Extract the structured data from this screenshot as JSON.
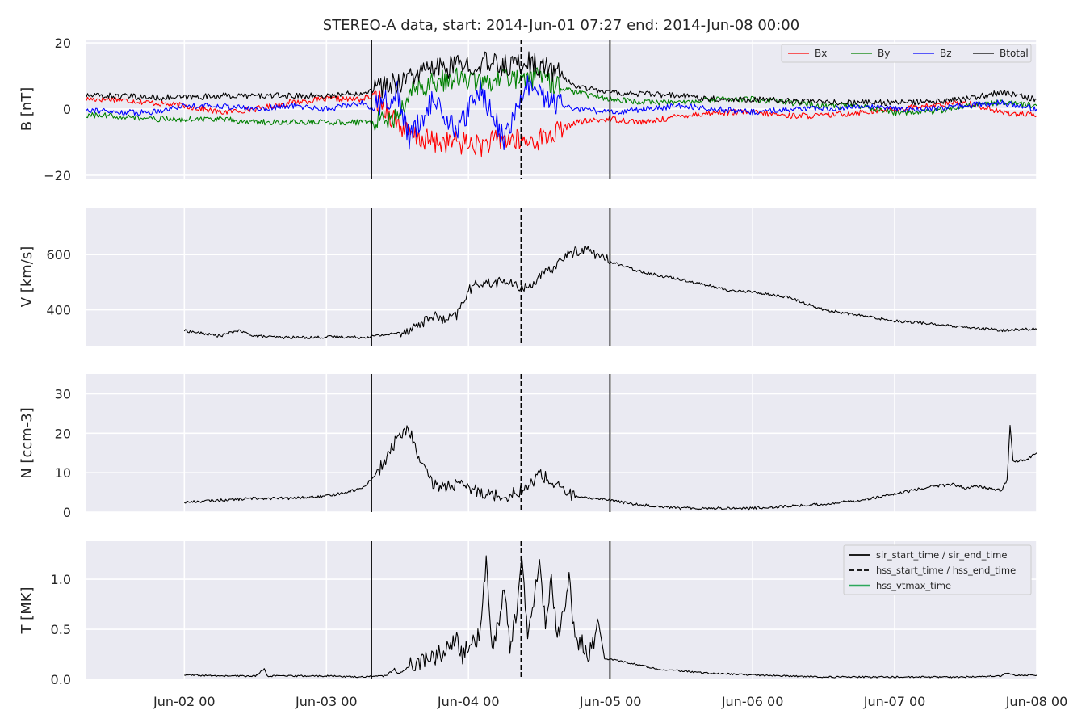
{
  "chart_data": [
    {
      "type": "line",
      "panel": "B",
      "title": "STEREO-A data, start: 2014-Jun-01 07:27  end: 2014-Jun-08 00:00",
      "ylabel": "B [nT]",
      "xlim_hours": [
        7.45,
        168
      ],
      "ylim": [
        -21,
        21
      ],
      "yticks": [
        20,
        0,
        -20
      ],
      "ytick_labels": [
        "20",
        "0",
        "−20"
      ],
      "grid": true,
      "legend_position": "top-right",
      "series": [
        {
          "name": "Bx",
          "color": "#ff0000",
          "x": [
            7.45,
            12,
            18,
            24,
            30,
            36,
            42,
            48,
            54,
            56,
            60,
            62,
            66,
            70,
            74,
            78,
            82,
            86,
            90,
            96,
            102,
            108,
            114,
            120,
            126,
            132,
            138,
            144,
            150,
            156,
            162,
            168
          ],
          "values": [
            3,
            3,
            2,
            1,
            -1,
            0,
            2,
            3,
            3,
            4,
            -4,
            -8,
            -10,
            -10,
            -11,
            -9,
            -10,
            -8,
            -4,
            -3,
            -4,
            -2,
            -1,
            -1,
            -2,
            -2,
            -1,
            0,
            1,
            2,
            -1,
            -2
          ]
        },
        {
          "name": "By",
          "color": "#008000",
          "x": [
            7.45,
            12,
            18,
            24,
            30,
            36,
            42,
            48,
            54,
            56,
            60,
            62,
            66,
            70,
            74,
            78,
            82,
            86,
            90,
            96,
            102,
            108,
            114,
            120,
            126,
            132,
            138,
            144,
            150,
            156,
            162,
            168
          ],
          "values": [
            -2,
            -2,
            -3,
            -3,
            -3,
            -4,
            -4,
            -4,
            -4,
            -4,
            -3,
            5,
            8,
            9,
            8,
            9,
            10,
            8,
            5,
            3,
            2,
            2,
            3,
            3,
            2,
            1,
            1,
            -1,
            -1,
            1,
            2,
            1
          ]
        },
        {
          "name": "Bz",
          "color": "#0000ff",
          "x": [
            7.45,
            12,
            18,
            24,
            30,
            36,
            42,
            48,
            54,
            56,
            60,
            62,
            66,
            70,
            74,
            78,
            82,
            86,
            90,
            96,
            102,
            108,
            114,
            120,
            126,
            132,
            138,
            144,
            150,
            156,
            162,
            168
          ],
          "values": [
            0,
            -1,
            -1,
            1,
            1,
            0,
            1,
            0,
            2,
            0,
            5,
            -9,
            3,
            -7,
            6,
            -9,
            7,
            2,
            0,
            -1,
            0,
            1,
            0,
            -1,
            0,
            0,
            1,
            0,
            0,
            1,
            2,
            0
          ]
        },
        {
          "name": "Btotal",
          "color": "#000000",
          "x": [
            7.45,
            12,
            18,
            24,
            30,
            36,
            42,
            48,
            54,
            56,
            60,
            62,
            66,
            70,
            74,
            78,
            82,
            86,
            90,
            96,
            102,
            108,
            114,
            120,
            126,
            132,
            138,
            144,
            150,
            156,
            162,
            168
          ],
          "values": [
            4,
            4,
            3.5,
            3.5,
            4,
            4,
            4,
            4,
            5,
            6,
            8,
            10,
            12,
            13,
            14,
            13,
            14,
            12,
            7,
            5,
            4.5,
            4,
            3,
            3,
            2.5,
            2,
            2,
            2,
            2,
            3,
            5,
            3
          ]
        }
      ]
    },
    {
      "type": "line",
      "panel": "V",
      "ylabel": "V [km/s]",
      "xlim_hours": [
        7.45,
        168
      ],
      "ylim": [
        270,
        770
      ],
      "yticks": [
        600,
        400
      ],
      "ytick_labels": [
        "600",
        "400"
      ],
      "grid": true,
      "series": [
        {
          "color": "#000000",
          "x": [
            24,
            26,
            30,
            33,
            36,
            40,
            46,
            50,
            54,
            56,
            60,
            62,
            64,
            66,
            68,
            70,
            72,
            74,
            76,
            78,
            80,
            82,
            84,
            86,
            88,
            90,
            92,
            94,
            96,
            100,
            104,
            108,
            112,
            116,
            120,
            126,
            132,
            138,
            144,
            150,
            156,
            160,
            162,
            166,
            168
          ],
          "values": [
            325,
            318,
            305,
            325,
            305,
            300,
            300,
            303,
            300,
            305,
            315,
            330,
            350,
            380,
            360,
            380,
            470,
            500,
            495,
            505,
            485,
            480,
            520,
            545,
            590,
            610,
            620,
            595,
            575,
            545,
            525,
            510,
            490,
            470,
            465,
            445,
            400,
            380,
            360,
            350,
            335,
            330,
            325,
            330,
            330
          ]
        }
      ]
    },
    {
      "type": "line",
      "panel": "N",
      "ylabel": "N [ccm-3]",
      "xlim_hours": [
        7.45,
        168
      ],
      "ylim": [
        0,
        35
      ],
      "yticks": [
        30,
        20,
        10,
        0
      ],
      "ytick_labels": [
        "30",
        "20",
        "10",
        "0"
      ],
      "grid": true,
      "series": [
        {
          "color": "#000000",
          "x": [
            24,
            30,
            36,
            42,
            48,
            54,
            56,
            58,
            60,
            62,
            64,
            66,
            68,
            70,
            72,
            76,
            78,
            80,
            82,
            84,
            86,
            88,
            90,
            92,
            94,
            96,
            100,
            104,
            108,
            114,
            120,
            126,
            132,
            138,
            144,
            150,
            154,
            156,
            158,
            162,
            163,
            163.5,
            164,
            166,
            168
          ],
          "values": [
            2.5,
            3,
            3.5,
            3.5,
            4,
            6,
            9,
            13,
            19,
            21,
            12,
            7,
            6.5,
            7,
            6,
            4.5,
            4,
            5,
            6,
            10,
            7.5,
            5.5,
            4,
            3.5,
            3.5,
            3,
            2,
            1.5,
            1,
            1,
            1,
            1.5,
            2,
            3,
            4.5,
            6.5,
            7,
            6,
            6.5,
            5.5,
            8,
            22,
            13,
            13,
            15
          ]
        }
      ]
    },
    {
      "type": "line",
      "panel": "T",
      "ylabel": "T [MK]",
      "xlim_hours": [
        7.45,
        168
      ],
      "ylim": [
        0,
        1.38
      ],
      "yticks": [
        1.0,
        0.5,
        0.0
      ],
      "ytick_labels": [
        "1.0",
        "0.5",
        "0.0"
      ],
      "xticks_hours": [
        24,
        48,
        72,
        96,
        120,
        144,
        168
      ],
      "xtick_labels": [
        "Jun-02 00",
        "Jun-03 00",
        "Jun-04 00",
        "Jun-05 00",
        "Jun-06 00",
        "Jun-07 00",
        "Jun-08 00"
      ],
      "grid": true,
      "legend_position": "top-right",
      "series": [
        {
          "color": "#000000",
          "x": [
            24,
            30,
            36,
            37.5,
            38,
            42,
            48,
            54,
            56,
            58,
            59.5,
            60,
            62,
            64,
            66,
            68,
            70,
            71,
            72,
            74,
            75,
            76,
            77,
            78,
            79,
            80,
            81,
            82,
            83,
            84,
            85,
            86,
            87,
            88,
            89,
            90,
            91,
            92,
            93,
            94,
            95,
            96,
            100,
            104,
            108,
            112,
            116,
            120,
            126,
            132,
            138,
            144,
            150,
            156,
            162,
            163,
            164,
            166,
            168
          ],
          "values": [
            0.04,
            0.03,
            0.03,
            0.1,
            0.03,
            0.03,
            0.03,
            0.02,
            0.03,
            0.03,
            0.1,
            0.05,
            0.12,
            0.15,
            0.18,
            0.25,
            0.35,
            0.2,
            0.3,
            0.4,
            1.15,
            0.3,
            0.5,
            0.9,
            0.3,
            0.6,
            1.15,
            0.4,
            0.7,
            1.17,
            0.5,
            0.95,
            0.4,
            0.6,
            1.05,
            0.3,
            0.35,
            0.2,
            0.3,
            0.55,
            0.2,
            0.2,
            0.15,
            0.1,
            0.08,
            0.06,
            0.05,
            0.04,
            0.03,
            0.02,
            0.02,
            0.02,
            0.02,
            0.02,
            0.03,
            0.06,
            0.04,
            0.04,
            0.04
          ]
        }
      ],
      "legend_entries": [
        {
          "label": "sir_start_time / sir_end_time",
          "style": "solid",
          "color": "#000000"
        },
        {
          "label": "hss_start_time / hss_end_time",
          "style": "dashed",
          "color": "#000000"
        },
        {
          "label": "hss_vtmax_time",
          "style": "solid",
          "color": "#2ca85c"
        }
      ]
    }
  ],
  "event_markers": {
    "sir_start_time_hours": 55.6,
    "hss_start_time_hours": 80.9,
    "sir_end_time_hours": 95.9
  }
}
